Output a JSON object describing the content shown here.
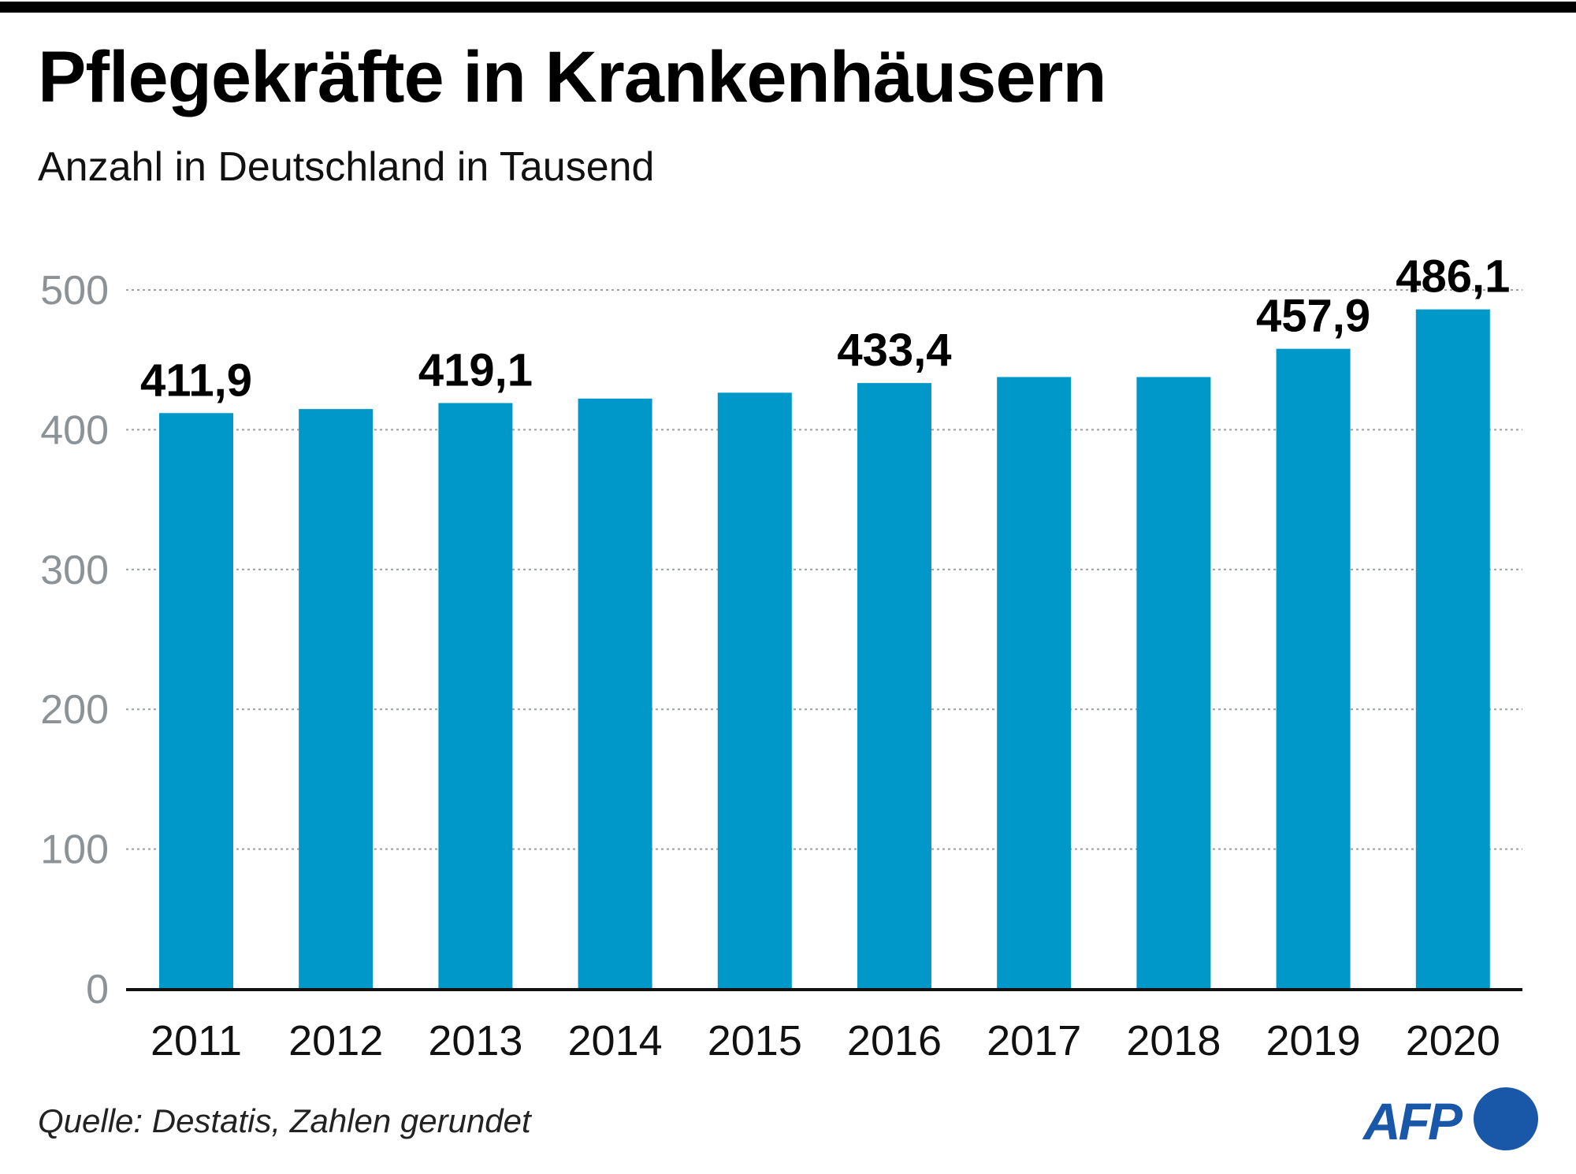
{
  "header": {
    "title": "Pflegekräfte in Krankenhäusern",
    "subtitle": "Anzahl in Deutschland in Tausend"
  },
  "footer": {
    "source": "Quelle: Destatis, Zahlen gerundet",
    "logo_text": "AFP"
  },
  "colors": {
    "bar": "#0097c9",
    "grid": "#9aa0a4",
    "tick_label": "#8c9296",
    "logo": "#1957a8"
  },
  "chart_data": {
    "type": "bar",
    "title": "Pflegekräfte in Krankenhäusern",
    "subtitle": "Anzahl in Deutschland in Tausend",
    "xlabel": "",
    "ylabel": "",
    "categories": [
      "2011",
      "2012",
      "2013",
      "2014",
      "2015",
      "2016",
      "2017",
      "2018",
      "2019",
      "2020"
    ],
    "values": [
      411.9,
      414.8,
      419.1,
      422.3,
      426.5,
      433.4,
      437.7,
      437.7,
      457.9,
      486.1
    ],
    "data_labels": [
      "411,9",
      null,
      "419,1",
      null,
      null,
      "433,4",
      null,
      null,
      "457,9",
      "486,1"
    ],
    "ylim": [
      0,
      500
    ],
    "yticks": [
      0,
      100,
      200,
      300,
      400,
      500
    ],
    "ytick_labels": [
      "0",
      "100",
      "200",
      "300",
      "400",
      "500"
    ],
    "grid": "horizontal-dotted",
    "legend": "none"
  }
}
